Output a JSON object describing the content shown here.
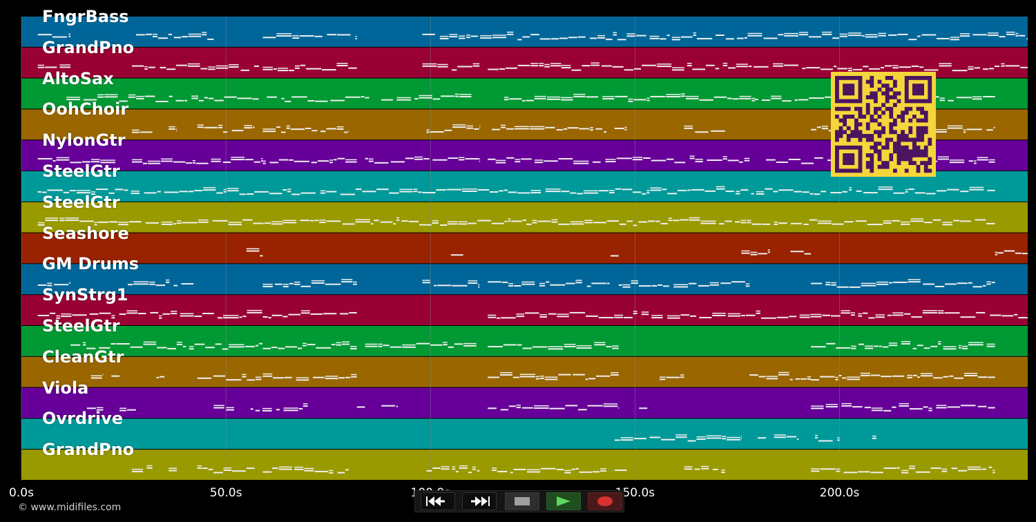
{
  "app": {
    "copyright": "© www.midifiles.com"
  },
  "colors": {
    "background": "#000000",
    "note": "#f0f0f0",
    "gridline": "#8a8a8a",
    "qr_fg": "#4a1460",
    "qr_bg": "#f5d63a",
    "track_palette": [
      "#006699",
      "#990033",
      "#009933",
      "#996600",
      "#660099",
      "#009999",
      "#999900",
      "#992200"
    ]
  },
  "timeline": {
    "duration_s": 246,
    "ticks": [
      {
        "value": 0,
        "label": "0.0s"
      },
      {
        "value": 50,
        "label": "50.0s"
      },
      {
        "value": 100,
        "label": "100.0s"
      },
      {
        "value": 150,
        "label": "150.0s"
      },
      {
        "value": 200,
        "label": "200.0s"
      }
    ]
  },
  "tracks": [
    {
      "name": "FngrBass",
      "color": "#006699",
      "notes": [
        [
          4,
          12
        ],
        [
          28,
          47
        ],
        [
          59,
          82
        ],
        [
          98,
          246
        ]
      ]
    },
    {
      "name": "GrandPno",
      "color": "#990033",
      "notes": [
        [
          4,
          12
        ],
        [
          27,
          59
        ],
        [
          59,
          82
        ],
        [
          98,
          112
        ],
        [
          114,
          246
        ]
      ]
    },
    {
      "name": "AltoSax",
      "color": "#009933",
      "notes": [
        [
          11,
          58
        ],
        [
          60,
          85
        ],
        [
          88,
          110
        ],
        [
          118,
          208
        ],
        [
          214,
          238
        ]
      ]
    },
    {
      "name": "OohChoir",
      "color": "#996600",
      "notes": [
        [
          27,
          32
        ],
        [
          36,
          38
        ],
        [
          43,
          57
        ],
        [
          59,
          80
        ],
        [
          99,
          112
        ],
        [
          115,
          143
        ],
        [
          145,
          148
        ],
        [
          162,
          172
        ],
        [
          193,
          238
        ]
      ]
    },
    {
      "name": "NylonGtr",
      "color": "#660099",
      "notes": [
        [
          4,
          23
        ],
        [
          27,
          59
        ],
        [
          59,
          82
        ],
        [
          84,
          112
        ],
        [
          114,
          178
        ],
        [
          182,
          203
        ],
        [
          205,
          238
        ]
      ]
    },
    {
      "name": "SteelGtr",
      "color": "#009999",
      "notes": [
        [
          4,
          99
        ],
        [
          99,
          238
        ]
      ]
    },
    {
      "name": "SteelGtr",
      "color": "#999900",
      "notes": [
        [
          4,
          99
        ],
        [
          99,
          238
        ]
      ]
    },
    {
      "name": "Seashore",
      "color": "#992200",
      "notes": [
        [
          55,
          59
        ],
        [
          105,
          108
        ],
        [
          144,
          146
        ],
        [
          176,
          183
        ],
        [
          188,
          193
        ],
        [
          238,
          246
        ]
      ]
    },
    {
      "name": "GM Drums",
      "color": "#006699",
      "notes": [
        [
          4,
          12
        ],
        [
          26,
          43
        ],
        [
          59,
          82
        ],
        [
          98,
          112
        ],
        [
          114,
          144
        ],
        [
          146,
          178
        ],
        [
          193,
          238
        ]
      ]
    },
    {
      "name": "SynStrg1",
      "color": "#990033",
      "notes": [
        [
          4,
          59
        ],
        [
          59,
          82
        ],
        [
          114,
          246
        ]
      ]
    },
    {
      "name": "SteelGtr",
      "color": "#009933",
      "notes": [
        [
          12,
          59
        ],
        [
          59,
          82
        ],
        [
          84,
          112
        ],
        [
          114,
          146
        ],
        [
          193,
          238
        ]
      ]
    },
    {
      "name": "CleanGtr",
      "color": "#996600",
      "notes": [
        [
          17,
          20
        ],
        [
          22,
          24
        ],
        [
          33,
          35
        ],
        [
          43,
          59
        ],
        [
          59,
          82
        ],
        [
          114,
          146
        ],
        [
          156,
          162
        ],
        [
          178,
          193
        ],
        [
          193,
          238
        ]
      ]
    },
    {
      "name": "Viola",
      "color": "#660099",
      "notes": [
        [
          16,
          20
        ],
        [
          24,
          28
        ],
        [
          47,
          52
        ],
        [
          56,
          70
        ],
        [
          82,
          84
        ],
        [
          88,
          92
        ],
        [
          114,
          146
        ],
        [
          151,
          153
        ],
        [
          193,
          238
        ]
      ]
    },
    {
      "name": "Ovrdrive",
      "color": "#009999",
      "notes": [
        [
          145,
          176
        ],
        [
          180,
          182
        ],
        [
          184,
          190
        ],
        [
          194,
          200
        ],
        [
          208,
          209
        ]
      ]
    },
    {
      "name": "GrandPno",
      "color": "#999900",
      "notes": [
        [
          27,
          32
        ],
        [
          36,
          38
        ],
        [
          43,
          57
        ],
        [
          59,
          80
        ],
        [
          99,
          112
        ],
        [
          115,
          143
        ],
        [
          145,
          148
        ],
        [
          162,
          172
        ],
        [
          193,
          238
        ]
      ]
    }
  ],
  "transport": {
    "buttons": [
      {
        "name": "rewind-button",
        "icon": "rewind-icon",
        "color": "#ffffff"
      },
      {
        "name": "fast-forward-button",
        "icon": "fast-forward-icon",
        "color": "#ffffff"
      },
      {
        "name": "stop-button",
        "icon": "stop-icon",
        "color": "#a0a0a0"
      },
      {
        "name": "play-button",
        "icon": "play-icon",
        "color": "#5cd65c"
      },
      {
        "name": "record-button",
        "icon": "record-icon",
        "color": "#d93030"
      }
    ]
  },
  "qr": {
    "icon": "qr-code-icon"
  }
}
